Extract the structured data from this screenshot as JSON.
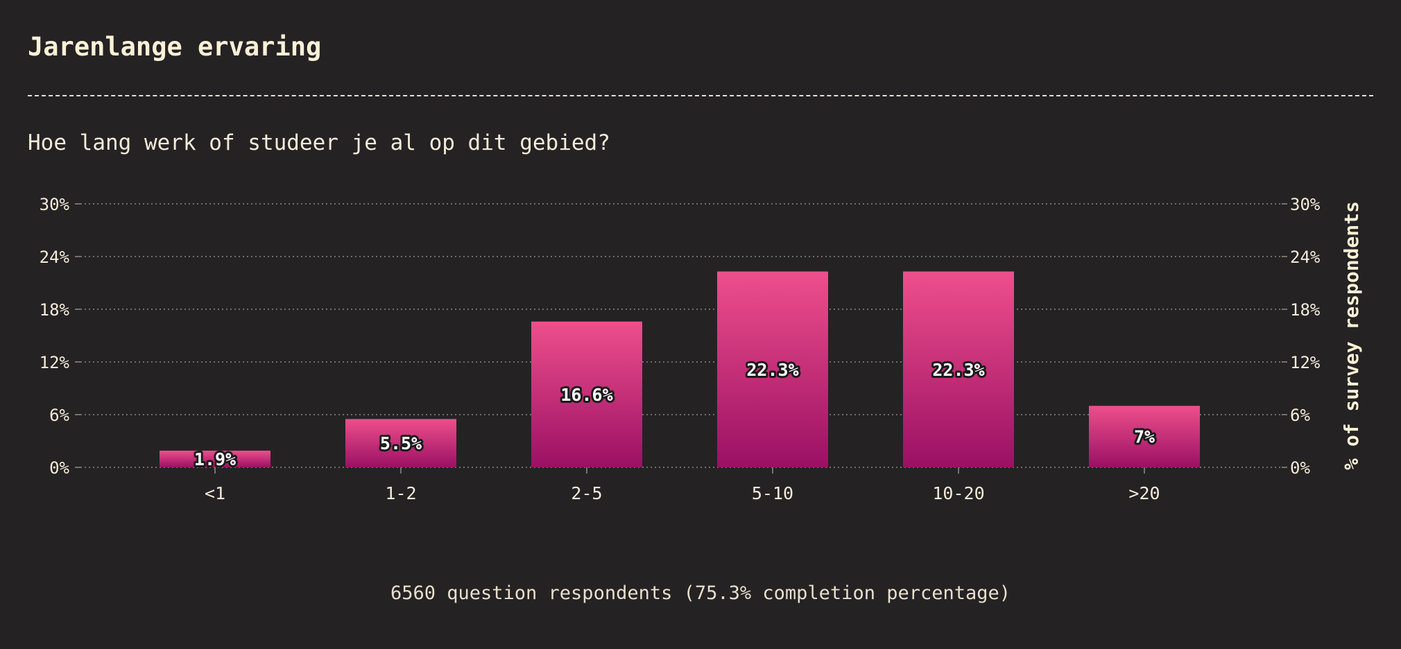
{
  "header": {
    "title": "Jarenlange ervaring",
    "question": "Hoe lang werk of studeer je al op dit gebied?"
  },
  "footer": {
    "note": "6560 question respondents (75.3% completion percentage)"
  },
  "colors": {
    "background": "#252224",
    "bar_top": "#ee4f8c",
    "bar_bottom": "#9b1064",
    "text": "#f3ecd9"
  },
  "chart_data": {
    "type": "bar",
    "categories": [
      "<1",
      "1-2",
      "2-5",
      "5-10",
      "10-20",
      ">20"
    ],
    "values": [
      1.9,
      5.5,
      16.6,
      22.3,
      22.3,
      7
    ],
    "value_labels": [
      "1.9%",
      "5.5%",
      "16.6%",
      "22.3%",
      "22.3%",
      "7%"
    ],
    "yticks": [
      "0%",
      "6%",
      "12%",
      "18%",
      "24%",
      "30%"
    ],
    "ytick_values": [
      0,
      6,
      12,
      18,
      24,
      30
    ],
    "ylim": [
      0,
      30
    ],
    "ylabel_right": "% of survey respondents",
    "grid": true,
    "grid_style": "dotted",
    "legend": "none"
  }
}
